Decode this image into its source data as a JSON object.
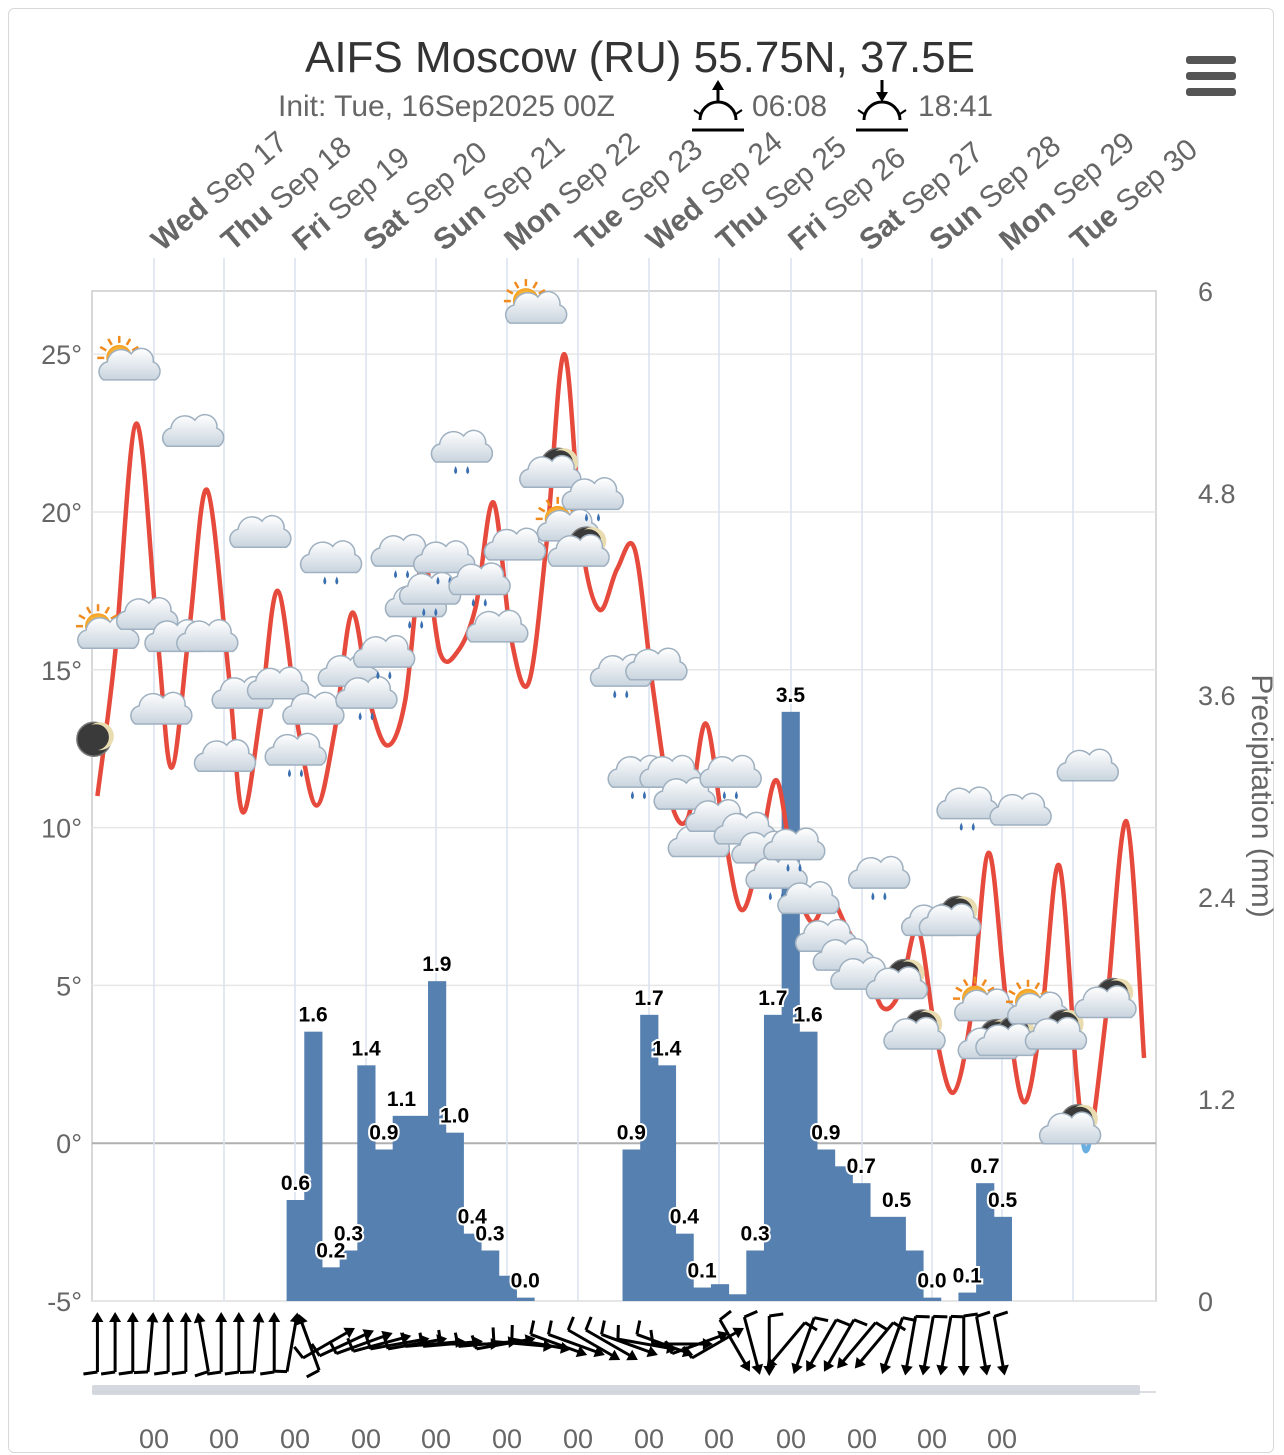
{
  "header": {
    "title": "AIFS Moscow (RU) 55.75N, 37.5E",
    "init": "Init: Tue, 16Sep2025 00Z",
    "sunrise": "06:08",
    "sunset": "18:41"
  },
  "menu": {
    "icon": "hamburger-menu-icon"
  },
  "colors": {
    "temperature_warm": "#e64a3c",
    "temperature_cold": "#6aaee0",
    "precipitation": "#5680b0",
    "grid": "#e6e6e6",
    "axis_text": "#666666"
  },
  "chart_data": {
    "type": "line+bar",
    "left_axis": {
      "ticks": [
        "-5°",
        "0°",
        "5°",
        "10°",
        "15°",
        "20°",
        "25°"
      ],
      "values": [
        -5,
        0,
        5,
        10,
        15,
        20,
        25
      ],
      "ylim": [
        -5,
        27
      ]
    },
    "right_axis": {
      "label": "Precipitation (mm)",
      "ticks": [
        "0",
        "1.2",
        "2.4",
        "3.6",
        "4.8",
        "6"
      ],
      "values": [
        0,
        1.2,
        2.4,
        3.6,
        4.8,
        6
      ],
      "ylim": [
        0,
        6
      ]
    },
    "x_unit": "days since Tue 16 Sep 2025 00Z",
    "xlim": [
      -0.9,
      14.0
    ],
    "days": [
      {
        "dow": "Wed",
        "date": "Sep 17"
      },
      {
        "dow": "Thu",
        "date": "Sep 18"
      },
      {
        "dow": "Fri",
        "date": "Sep 19"
      },
      {
        "dow": "Sat",
        "date": "Sep 20"
      },
      {
        "dow": "Sun",
        "date": "Sep 21"
      },
      {
        "dow": "Mon",
        "date": "Sep 22"
      },
      {
        "dow": "Tue",
        "date": "Sep 23"
      },
      {
        "dow": "Wed",
        "date": "Sep 24"
      },
      {
        "dow": "Thu",
        "date": "Sep 25"
      },
      {
        "dow": "Fri",
        "date": "Sep 26"
      },
      {
        "dow": "Sat",
        "date": "Sep 27"
      },
      {
        "dow": "Sun",
        "date": "Sep 28"
      },
      {
        "dow": "Mon",
        "date": "Sep 29"
      },
      {
        "dow": "Tue",
        "date": "Sep 30"
      }
    ],
    "bottom_ticks": [
      "00",
      "00",
      "00",
      "00",
      "00",
      "00",
      "00",
      "00",
      "00",
      "00",
      "00",
      "00",
      "00"
    ],
    "temperature": {
      "name": "Temperature",
      "points": [
        [
          -0.8,
          11.0
        ],
        [
          -0.55,
          15.5
        ],
        [
          -0.25,
          22.8
        ],
        [
          0.05,
          16.0
        ],
        [
          0.25,
          11.9
        ],
        [
          0.5,
          16.3
        ],
        [
          0.75,
          20.7
        ],
        [
          1.05,
          15.0
        ],
        [
          1.25,
          10.5
        ],
        [
          1.5,
          13.5
        ],
        [
          1.75,
          17.5
        ],
        [
          2.05,
          13.0
        ],
        [
          2.3,
          10.7
        ],
        [
          2.55,
          13.0
        ],
        [
          2.8,
          16.8
        ],
        [
          3.05,
          14.0
        ],
        [
          3.3,
          12.6
        ],
        [
          3.55,
          14.0
        ],
        [
          3.8,
          18.5
        ],
        [
          4.05,
          15.5
        ],
        [
          4.3,
          15.6
        ],
        [
          4.55,
          17.0
        ],
        [
          4.8,
          20.3
        ],
        [
          5.05,
          16.0
        ],
        [
          5.3,
          14.6
        ],
        [
          5.55,
          19.0
        ],
        [
          5.8,
          25.0
        ],
        [
          6.05,
          19.0
        ],
        [
          6.3,
          16.9
        ],
        [
          6.55,
          18.2
        ],
        [
          6.8,
          18.8
        ],
        [
          7.05,
          14.5
        ],
        [
          7.3,
          10.9
        ],
        [
          7.55,
          10.3
        ],
        [
          7.8,
          13.3
        ],
        [
          8.05,
          10.0
        ],
        [
          8.3,
          7.4
        ],
        [
          8.55,
          9.0
        ],
        [
          8.8,
          11.5
        ],
        [
          9.05,
          8.5
        ],
        [
          9.3,
          7.0
        ],
        [
          9.55,
          7.8
        ],
        [
          9.8,
          6.8
        ],
        [
          10.05,
          5.8
        ],
        [
          10.3,
          4.3
        ],
        [
          10.55,
          4.8
        ],
        [
          10.8,
          6.8
        ],
        [
          11.05,
          3.5
        ],
        [
          11.3,
          1.6
        ],
        [
          11.55,
          4.0
        ],
        [
          11.8,
          9.2
        ],
        [
          12.05,
          4.5
        ],
        [
          12.3,
          1.3
        ],
        [
          12.55,
          4.0
        ],
        [
          12.8,
          8.8
        ],
        [
          13.05,
          2.0
        ],
        [
          13.2,
          -0.2
        ],
        [
          13.45,
          3.8
        ],
        [
          13.75,
          10.2
        ],
        [
          14.0,
          2.7
        ]
      ],
      "below_zero_color": "#6aaee0"
    },
    "precipitation": {
      "name": "Precipitation",
      "bars": [
        {
          "x": 2.0,
          "value": 0.6,
          "label": "0.6"
        },
        {
          "x": 2.25,
          "value": 1.6,
          "label": "1.6"
        },
        {
          "x": 2.5,
          "value": 0.2,
          "label": "0.2"
        },
        {
          "x": 2.75,
          "value": 0.3,
          "label": "0.3"
        },
        {
          "x": 3.0,
          "value": 1.4,
          "label": "1.4"
        },
        {
          "x": 3.25,
          "value": 0.9,
          "label": "0.9"
        },
        {
          "x": 3.5,
          "value": 1.1,
          "label": "1.1"
        },
        {
          "x": 3.75,
          "value": 1.1,
          "label": ""
        },
        {
          "x": 4.0,
          "value": 1.9,
          "label": "1.9"
        },
        {
          "x": 4.25,
          "value": 1.0,
          "label": "1.0"
        },
        {
          "x": 4.5,
          "value": 0.4,
          "label": "0.4"
        },
        {
          "x": 4.75,
          "value": 0.3,
          "label": "0.3"
        },
        {
          "x": 5.0,
          "value": 0.15,
          "label": ""
        },
        {
          "x": 5.25,
          "value": 0.02,
          "label": "0.0"
        },
        {
          "x": 6.75,
          "value": 0.9,
          "label": "0.9"
        },
        {
          "x": 7.0,
          "value": 1.7,
          "label": "1.7"
        },
        {
          "x": 7.25,
          "value": 1.4,
          "label": "1.4"
        },
        {
          "x": 7.5,
          "value": 0.4,
          "label": "0.4"
        },
        {
          "x": 7.75,
          "value": 0.08,
          "label": "0.1"
        },
        {
          "x": 8.0,
          "value": 0.1,
          "label": ""
        },
        {
          "x": 8.25,
          "value": 0.04,
          "label": ""
        },
        {
          "x": 8.5,
          "value": 0.3,
          "label": "0.3"
        },
        {
          "x": 8.75,
          "value": 1.7,
          "label": "1.7"
        },
        {
          "x": 9.0,
          "value": 3.5,
          "label": "3.5"
        },
        {
          "x": 9.25,
          "value": 1.6,
          "label": "1.6"
        },
        {
          "x": 9.5,
          "value": 0.9,
          "label": "0.9"
        },
        {
          "x": 9.75,
          "value": 0.8,
          "label": ""
        },
        {
          "x": 10.0,
          "value": 0.7,
          "label": "0.7"
        },
        {
          "x": 10.25,
          "value": 0.5,
          "label": ""
        },
        {
          "x": 10.5,
          "value": 0.5,
          "label": "0.5"
        },
        {
          "x": 10.75,
          "value": 0.3,
          "label": ""
        },
        {
          "x": 11.0,
          "value": 0.02,
          "label": "0.0"
        },
        {
          "x": 11.5,
          "value": 0.05,
          "label": "0.1"
        },
        {
          "x": 11.75,
          "value": 0.7,
          "label": "0.7"
        },
        {
          "x": 12.0,
          "value": 0.5,
          "label": "0.5"
        }
      ]
    },
    "weather_icons": [
      {
        "x": -0.85,
        "t": 12.8,
        "icon": "moon-icon"
      },
      {
        "x": -0.65,
        "t": 16.0,
        "icon": "sun-cloud-icon"
      },
      {
        "x": -0.35,
        "t": 24.5,
        "icon": "sun-cloud-icon"
      },
      {
        "x": -0.1,
        "t": 16.6,
        "icon": "cloud-icon"
      },
      {
        "x": 0.1,
        "t": 13.6,
        "icon": "cloud-icon"
      },
      {
        "x": 0.3,
        "t": 15.9,
        "icon": "cloud-icon"
      },
      {
        "x": 0.55,
        "t": 22.4,
        "icon": "cloud-icon"
      },
      {
        "x": 0.75,
        "t": 15.9,
        "icon": "cloud-icon"
      },
      {
        "x": 1.0,
        "t": 12.1,
        "icon": "cloud-icon"
      },
      {
        "x": 1.25,
        "t": 14.1,
        "icon": "cloud-icon"
      },
      {
        "x": 1.5,
        "t": 19.2,
        "icon": "cloud-icon"
      },
      {
        "x": 1.75,
        "t": 14.4,
        "icon": "cloud-icon"
      },
      {
        "x": 2.0,
        "t": 12.3,
        "icon": "cloud-rain-icon"
      },
      {
        "x": 2.25,
        "t": 13.6,
        "icon": "cloud-icon"
      },
      {
        "x": 2.5,
        "t": 18.4,
        "icon": "cloud-rain-icon"
      },
      {
        "x": 2.75,
        "t": 14.8,
        "icon": "cloud-rain-icon"
      },
      {
        "x": 3.0,
        "t": 14.1,
        "icon": "cloud-rain-icon"
      },
      {
        "x": 3.25,
        "t": 15.4,
        "icon": "cloud-rain-icon"
      },
      {
        "x": 3.5,
        "t": 18.6,
        "icon": "cloud-rain-icon"
      },
      {
        "x": 3.7,
        "t": 17.0,
        "icon": "cloud-rain-icon"
      },
      {
        "x": 3.9,
        "t": 17.4,
        "icon": "cloud-rain-icon"
      },
      {
        "x": 4.1,
        "t": 18.4,
        "icon": "cloud-rain-icon"
      },
      {
        "x": 4.35,
        "t": 21.9,
        "icon": "cloud-rain-icon"
      },
      {
        "x": 4.6,
        "t": 17.7,
        "icon": "cloud-rain-icon"
      },
      {
        "x": 4.85,
        "t": 16.2,
        "icon": "cloud-icon"
      },
      {
        "x": 5.1,
        "t": 18.8,
        "icon": "cloud-icon"
      },
      {
        "x": 5.4,
        "t": 26.3,
        "icon": "sun-cloud-icon"
      },
      {
        "x": 5.6,
        "t": 21.1,
        "icon": "moon-cloud-icon"
      },
      {
        "x": 5.85,
        "t": 19.4,
        "icon": "sun-cloud-icon"
      },
      {
        "x": 6.0,
        "t": 18.6,
        "icon": "moon-cloud-icon"
      },
      {
        "x": 6.2,
        "t": 20.4,
        "icon": "cloud-rain-icon"
      },
      {
        "x": 6.6,
        "t": 14.8,
        "icon": "cloud-rain-icon"
      },
      {
        "x": 6.85,
        "t": 11.6,
        "icon": "cloud-rain-icon"
      },
      {
        "x": 7.1,
        "t": 15.0,
        "icon": "cloud-icon"
      },
      {
        "x": 7.3,
        "t": 11.6,
        "icon": "cloud-rain-icon"
      },
      {
        "x": 7.5,
        "t": 10.9,
        "icon": "cloud-icon"
      },
      {
        "x": 7.7,
        "t": 9.4,
        "icon": "cloud-icon"
      },
      {
        "x": 7.95,
        "t": 10.2,
        "icon": "cloud-icon"
      },
      {
        "x": 8.15,
        "t": 11.6,
        "icon": "cloud-rain-icon"
      },
      {
        "x": 8.35,
        "t": 9.8,
        "icon": "cloud-rain-icon"
      },
      {
        "x": 8.6,
        "t": 9.2,
        "icon": "cloud-icon"
      },
      {
        "x": 8.8,
        "t": 8.4,
        "icon": "cloud-rain-icon"
      },
      {
        "x": 9.05,
        "t": 9.3,
        "icon": "cloud-rain-icon"
      },
      {
        "x": 9.25,
        "t": 7.6,
        "icon": "cloud-icon"
      },
      {
        "x": 9.5,
        "t": 6.4,
        "icon": "cloud-icon"
      },
      {
        "x": 9.75,
        "t": 5.8,
        "icon": "cloud-icon"
      },
      {
        "x": 10.0,
        "t": 5.2,
        "icon": "cloud-icon"
      },
      {
        "x": 10.25,
        "t": 8.4,
        "icon": "cloud-rain-icon"
      },
      {
        "x": 10.5,
        "t": 4.9,
        "icon": "moon-cloud-icon"
      },
      {
        "x": 10.75,
        "t": 3.3,
        "icon": "moon-cloud-icon"
      },
      {
        "x": 11.0,
        "t": 6.9,
        "icon": "cloud-icon"
      },
      {
        "x": 11.25,
        "t": 6.9,
        "icon": "moon-cloud-icon"
      },
      {
        "x": 11.5,
        "t": 10.6,
        "icon": "cloud-rain-icon"
      },
      {
        "x": 11.75,
        "t": 4.2,
        "icon": "sun-cloud-icon"
      },
      {
        "x": 11.8,
        "t": 3.0,
        "icon": "moon-cloud-icon"
      },
      {
        "x": 12.05,
        "t": 3.1,
        "icon": "moon-cloud-icon"
      },
      {
        "x": 12.25,
        "t": 10.4,
        "icon": "cloud-icon"
      },
      {
        "x": 12.5,
        "t": 4.1,
        "icon": "sun-cloud-icon"
      },
      {
        "x": 12.75,
        "t": 3.3,
        "icon": "moon-cloud-icon"
      },
      {
        "x": 12.95,
        "t": 0.3,
        "icon": "moon-cloud-icon"
      },
      {
        "x": 13.2,
        "t": 11.8,
        "icon": "cloud-icon"
      },
      {
        "x": 13.45,
        "t": 4.3,
        "icon": "moon-cloud-icon"
      }
    ],
    "wind_barbs": {
      "count": 52,
      "x_start": -0.8,
      "x_step": 0.25,
      "angles_deg": [
        0,
        0,
        0,
        5,
        0,
        0,
        350,
        0,
        0,
        5,
        0,
        10,
        340,
        60,
        65,
        70,
        75,
        80,
        80,
        85,
        85,
        90,
        85,
        80,
        95,
        100,
        110,
        110,
        120,
        120,
        110,
        100,
        110,
        90,
        70,
        60,
        150,
        165,
        180,
        220,
        200,
        210,
        210,
        220,
        220,
        200,
        190,
        190,
        190,
        180,
        170,
        170
      ],
      "note": "Wind barbs along bottom track (direction wind blows toward)"
    }
  }
}
